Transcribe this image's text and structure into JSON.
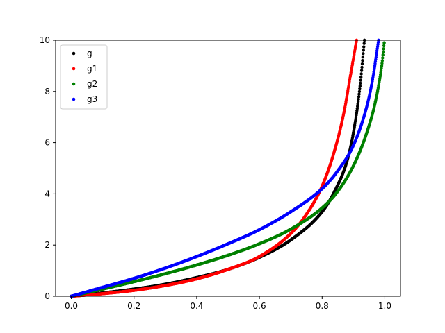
{
  "chart_data": {
    "type": "scatter",
    "title": "",
    "xlabel": "",
    "ylabel": "",
    "xlim": [
      -0.05,
      1.05
    ],
    "ylim": [
      0,
      10
    ],
    "x_ticks": [
      0.0,
      0.2,
      0.4,
      0.6,
      0.8,
      1.0
    ],
    "x_tick_labels": [
      "0.0",
      "0.2",
      "0.4",
      "0.6",
      "0.8",
      "1.0"
    ],
    "y_ticks": [
      0,
      2,
      4,
      6,
      8,
      10
    ],
    "y_tick_labels": [
      "0",
      "2",
      "4",
      "6",
      "8",
      "10"
    ],
    "grid": false,
    "legend_position": "upper-left",
    "x_range": [
      0,
      1
    ],
    "series": [
      {
        "name": "g",
        "color": "#000000",
        "x": [
          0.0,
          0.1,
          0.2,
          0.3,
          0.4,
          0.5,
          0.6,
          0.7,
          0.8,
          0.84,
          0.88,
          0.9,
          0.92,
          0.935
        ],
        "y": [
          0.0,
          0.13,
          0.28,
          0.47,
          0.73,
          1.05,
          1.52,
          2.2,
          3.3,
          4.1,
          5.3,
          6.4,
          8.1,
          10.0
        ]
      },
      {
        "name": "g1",
        "color": "#ff0000",
        "x": [
          0.0,
          0.1,
          0.2,
          0.3,
          0.4,
          0.5,
          0.6,
          0.7,
          0.75,
          0.8,
          0.84,
          0.87,
          0.89,
          0.91
        ],
        "y": [
          0.0,
          0.1,
          0.23,
          0.42,
          0.68,
          1.05,
          1.55,
          2.45,
          3.2,
          4.3,
          5.7,
          7.2,
          8.6,
          10.0
        ]
      },
      {
        "name": "g2",
        "color": "#008000",
        "x": [
          0.0,
          0.1,
          0.2,
          0.3,
          0.4,
          0.5,
          0.6,
          0.7,
          0.8,
          0.85,
          0.9,
          0.94,
          0.97,
          0.99,
          0.998
        ],
        "y": [
          0.0,
          0.28,
          0.57,
          0.88,
          1.22,
          1.6,
          2.05,
          2.62,
          3.45,
          4.1,
          5.1,
          6.3,
          7.6,
          9.0,
          9.9
        ]
      },
      {
        "name": "g3",
        "color": "#0000ff",
        "x": [
          0.0,
          0.1,
          0.2,
          0.3,
          0.4,
          0.5,
          0.6,
          0.7,
          0.8,
          0.85,
          0.9,
          0.94,
          0.96,
          0.98
        ],
        "y": [
          0.0,
          0.35,
          0.7,
          1.1,
          1.55,
          2.05,
          2.6,
          3.3,
          4.2,
          4.9,
          5.9,
          7.3,
          8.4,
          10.0
        ]
      }
    ]
  }
}
